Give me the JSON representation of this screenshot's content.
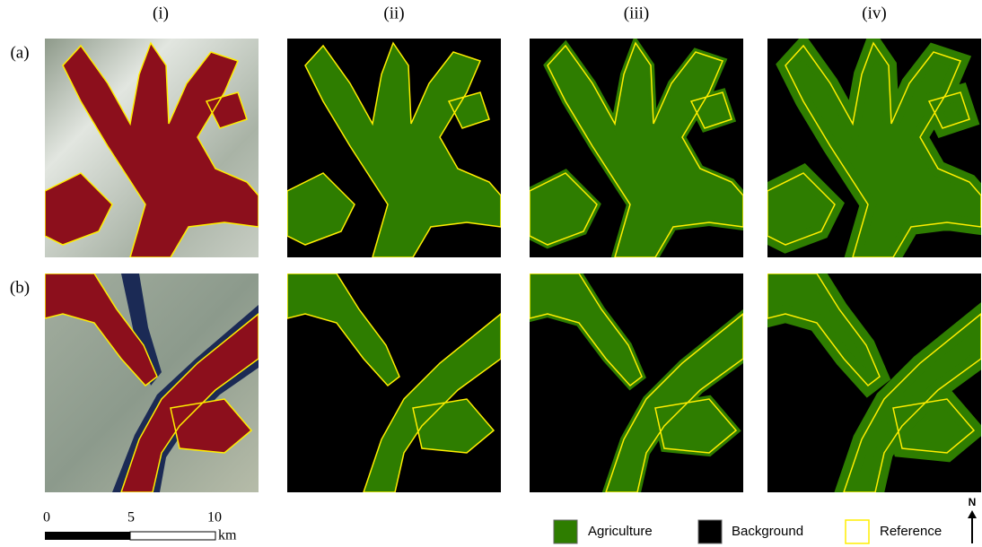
{
  "columns": [
    "(i)",
    "(ii)",
    "(iii)",
    "(iv)"
  ],
  "rows": [
    "(a)",
    "(b)"
  ],
  "scale_bar": {
    "labels": [
      "0",
      "5",
      "10"
    ],
    "unit": "km"
  },
  "legend": [
    "Agriculture",
    "Background",
    "Reference"
  ],
  "north": "N"
}
